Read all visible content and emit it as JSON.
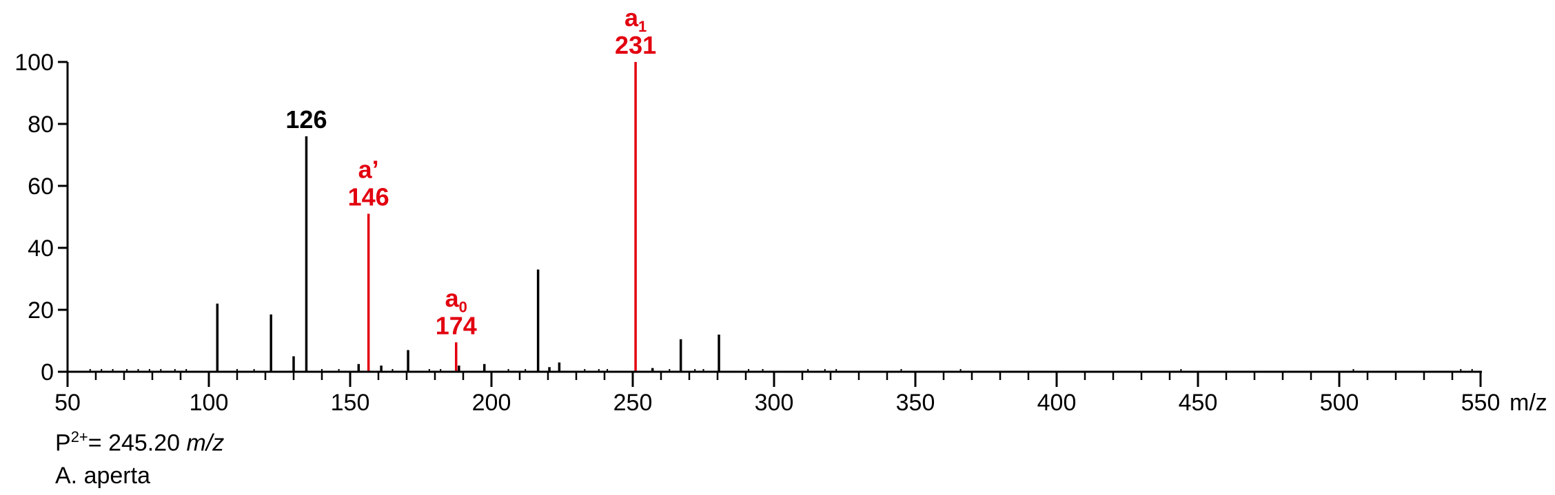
{
  "chart_data": {
    "type": "bar",
    "xlim": [
      50,
      550
    ],
    "ylim": [
      0,
      100
    ],
    "x_major_ticks": [
      50,
      100,
      150,
      200,
      250,
      300,
      350,
      400,
      450,
      500,
      550
    ],
    "x_tick_labels": [
      "50",
      "100",
      "150",
      "200",
      "250",
      "300",
      "350",
      "400",
      "450",
      "500",
      "550"
    ],
    "x_minor_step": 10,
    "x_unit_label": "m/z",
    "y_ticks": [
      0,
      20,
      40,
      60,
      80,
      100
    ],
    "y_tick_labels": [
      "0",
      "20",
      "40",
      "60",
      "80",
      "100"
    ],
    "grid": false,
    "colors": {
      "default": "#000000",
      "highlight": "#e2000f"
    },
    "peaks": [
      {
        "x": 103,
        "y": 22,
        "color": "#000000"
      },
      {
        "x": 122,
        "y": 18.5,
        "color": "#000000"
      },
      {
        "x": 130,
        "y": 5,
        "color": "#000000"
      },
      {
        "x": 134.5,
        "y": 76,
        "color": "#000000"
      },
      {
        "x": 156.5,
        "y": 51,
        "color": "#e2000f"
      },
      {
        "x": 153,
        "y": 2.5,
        "color": "#000000"
      },
      {
        "x": 161,
        "y": 2,
        "color": "#000000"
      },
      {
        "x": 170.5,
        "y": 7,
        "color": "#000000"
      },
      {
        "x": 187.5,
        "y": 9.5,
        "color": "#e2000f"
      },
      {
        "x": 188.5,
        "y": 2,
        "color": "#000000"
      },
      {
        "x": 197.5,
        "y": 2.5,
        "color": "#000000"
      },
      {
        "x": 216.5,
        "y": 33,
        "color": "#000000"
      },
      {
        "x": 220.5,
        "y": 1.5,
        "color": "#000000"
      },
      {
        "x": 224,
        "y": 3,
        "color": "#000000"
      },
      {
        "x": 251,
        "y": 100,
        "color": "#e2000f"
      },
      {
        "x": 257,
        "y": 1.2,
        "color": "#000000"
      },
      {
        "x": 267,
        "y": 10.5,
        "color": "#000000"
      },
      {
        "x": 280.5,
        "y": 12,
        "color": "#000000"
      }
    ],
    "noise": [
      58,
      62,
      66,
      71,
      75,
      79,
      83,
      88,
      92,
      110,
      116,
      140,
      146,
      165,
      178,
      182,
      206,
      212,
      233,
      238,
      241,
      263,
      272,
      275,
      291,
      296,
      312,
      318,
      322,
      345,
      366,
      444,
      505,
      543,
      547
    ],
    "annotations": [
      {
        "peak_x": 134.5,
        "lines": [
          "126"
        ],
        "color": "#000000"
      },
      {
        "peak_x": 156.5,
        "lines": [
          "a’",
          "146"
        ],
        "color": "#e2000f"
      },
      {
        "peak_x": 187.5,
        "lines": [
          "a",
          "174"
        ],
        "subscript": "0",
        "color": "#e2000f"
      },
      {
        "peak_x": 251,
        "lines": [
          "a",
          "231"
        ],
        "subscript": "1",
        "color": "#e2000f"
      }
    ]
  },
  "info": {
    "precursor_prefix": "P",
    "precursor_charge": "2+",
    "precursor_value": "= 245.20 ",
    "precursor_unit": "m/z",
    "species": "A. aperta"
  }
}
